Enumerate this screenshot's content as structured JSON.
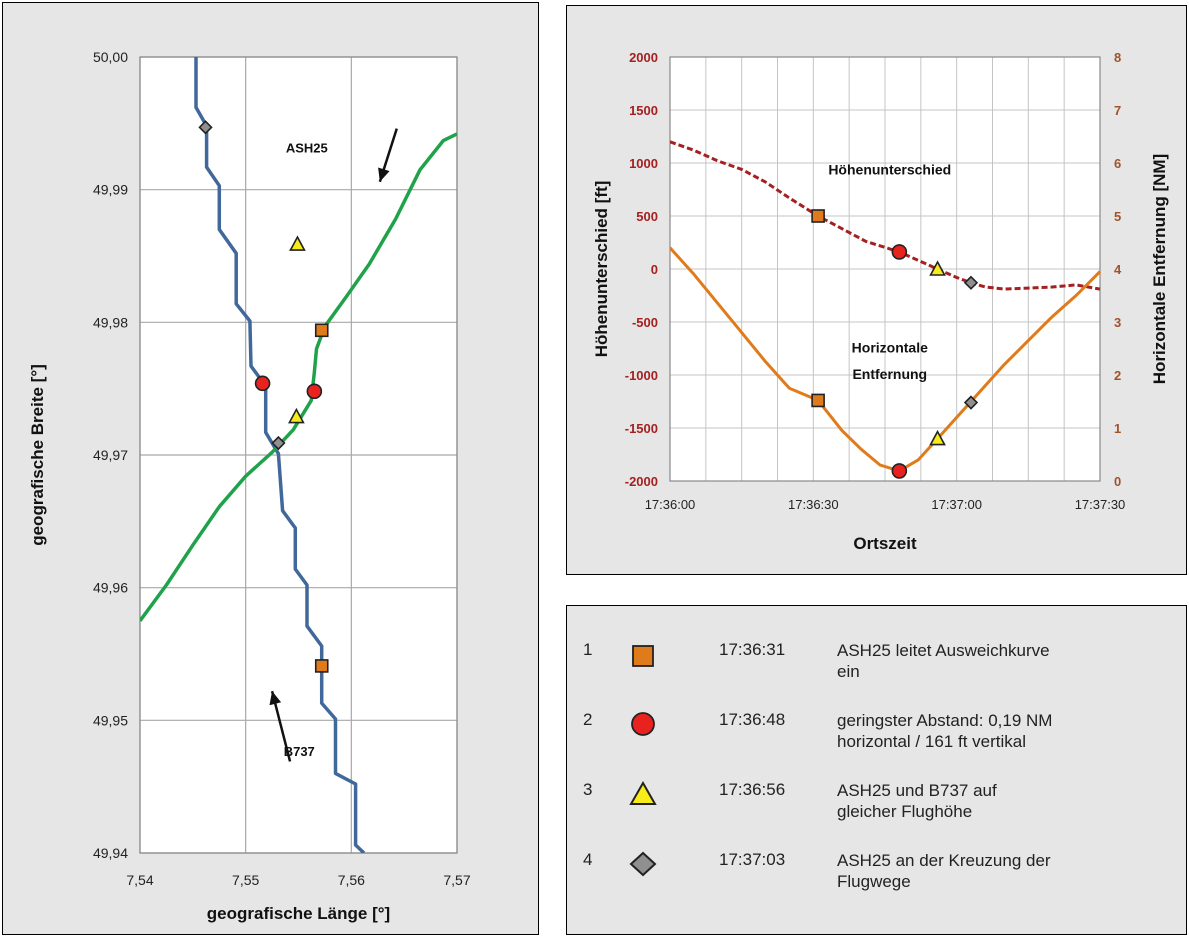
{
  "chart_data": [
    {
      "type": "line",
      "title": "",
      "xlabel": "geografische Länge [°]",
      "ylabel": "geografische Breite [°]",
      "xlim": [
        7.54,
        7.57
      ],
      "ylim": [
        49.94,
        50.0
      ],
      "x_ticks": [
        "7,54",
        "7,55",
        "7,56",
        "7,57"
      ],
      "y_ticks": [
        "49,94",
        "49,95",
        "49,96",
        "49,97",
        "49,98",
        "49,99",
        "50,00"
      ],
      "grid": true,
      "series": [
        {
          "name": "B737",
          "color": "#41689a",
          "points": [
            [
              7.5612,
              49.94
            ],
            [
              7.5604,
              49.9406
            ],
            [
              7.5604,
              49.9452
            ],
            [
              7.5585,
              49.946
            ],
            [
              7.5585,
              49.9501
            ],
            [
              7.5572,
              49.9513
            ],
            [
              7.5572,
              49.9556
            ],
            [
              7.5558,
              49.9571
            ],
            [
              7.5558,
              49.9602
            ],
            [
              7.5547,
              49.9614
            ],
            [
              7.5547,
              49.9645
            ],
            [
              7.5535,
              49.9658
            ],
            [
              7.5531,
              49.9701
            ],
            [
              7.5519,
              49.9717
            ],
            [
              7.5519,
              49.9752
            ],
            [
              7.5505,
              49.9767
            ],
            [
              7.5504,
              49.9801
            ],
            [
              7.5491,
              49.9814
            ],
            [
              7.5491,
              49.9852
            ],
            [
              7.5475,
              49.987
            ],
            [
              7.5475,
              49.9903
            ],
            [
              7.5463,
              49.9917
            ],
            [
              7.5463,
              49.9948
            ],
            [
              7.5453,
              49.9962
            ],
            [
              7.5453,
              50.0
            ]
          ]
        },
        {
          "name": "ASH25",
          "color": "#1fa24a",
          "points": [
            [
              7.54,
              49.9575
            ],
            [
              7.5425,
              49.9602
            ],
            [
              7.545,
              49.9632
            ],
            [
              7.5475,
              49.9661
            ],
            [
              7.55,
              49.9684
            ],
            [
              7.5525,
              49.9702
            ],
            [
              7.5545,
              49.9719
            ],
            [
              7.5562,
              49.9741
            ],
            [
              7.5565,
              49.9762
            ],
            [
              7.5567,
              49.978
            ],
            [
              7.5575,
              49.9797
            ],
            [
              7.5595,
              49.9819
            ],
            [
              7.5617,
              49.9844
            ],
            [
              7.5642,
              49.9878
            ],
            [
              7.5665,
              49.9915
            ],
            [
              7.5687,
              49.9937
            ],
            [
              7.57,
              49.9942
            ]
          ]
        }
      ],
      "markers": [
        {
          "shape": "square",
          "x": 7.5572,
          "y": 49.9794
        },
        {
          "shape": "square",
          "x": 7.5572,
          "y": 49.9541
        },
        {
          "shape": "circle",
          "x": 7.5516,
          "y": 49.9754
        },
        {
          "shape": "circle",
          "x": 7.5565,
          "y": 49.9748
        },
        {
          "shape": "triangle",
          "x": 7.5549,
          "y": 49.9859
        },
        {
          "shape": "triangle",
          "x": 7.5548,
          "y": 49.9729
        },
        {
          "shape": "diamond",
          "x": 7.5462,
          "y": 49.9947
        },
        {
          "shape": "diamond",
          "x": 7.5531,
          "y": 49.9709
        }
      ],
      "annotations": [
        {
          "text": "ASH25",
          "x": 7.5538,
          "y": 49.9928
        },
        {
          "text": "B737",
          "x": 7.5536,
          "y": 49.9473
        }
      ],
      "arrows": [
        {
          "from": [
            7.5643,
            49.9946
          ],
          "to": [
            7.5627,
            49.9906
          ]
        },
        {
          "from": [
            7.5542,
            49.9469
          ],
          "to": [
            7.5525,
            49.9522
          ]
        }
      ]
    },
    {
      "type": "line",
      "title": "",
      "xlabel": "Ortszeit",
      "ylabel": "Höhenunterschied  [ft]",
      "y2label": "Horizontale Entfernung  [NM]",
      "x_ticks": [
        "17:36:00",
        "17:36:30",
        "17:37:00",
        "17:37:30"
      ],
      "xlim_seconds": [
        0,
        90
      ],
      "ylim": [
        -2000,
        2000
      ],
      "y_ticks": [
        "2000",
        "1500",
        "1000",
        "500",
        "0",
        "-500",
        "-1000",
        "-1500",
        "-2000"
      ],
      "y2lim": [
        0,
        8
      ],
      "y2_ticks": [
        "8",
        "7",
        "6",
        "5",
        "4",
        "3",
        "2",
        "1",
        "0"
      ],
      "grid": true,
      "series": [
        {
          "name": "Höhenunterschied",
          "axis": "left",
          "color": "#a52020",
          "style": "dashed",
          "points_seconds": [
            [
              0,
              1200
            ],
            [
              5,
              1120
            ],
            [
              10,
              1020
            ],
            [
              15,
              940
            ],
            [
              20,
              820
            ],
            [
              25,
              670
            ],
            [
              31,
              500
            ],
            [
              36,
              380
            ],
            [
              41,
              260
            ],
            [
              46,
              190
            ],
            [
              48,
              161
            ],
            [
              52,
              80
            ],
            [
              56,
              0
            ],
            [
              60,
              -80
            ],
            [
              63,
              -130
            ],
            [
              66,
              -170
            ],
            [
              70,
              -190
            ],
            [
              75,
              -180
            ],
            [
              80,
              -170
            ],
            [
              85,
              -150
            ],
            [
              90,
              -190
            ]
          ]
        },
        {
          "name": "Horizontale Entfernung",
          "axis": "right",
          "color": "#e07b1b",
          "style": "solid",
          "points_seconds": [
            [
              0,
              4.4
            ],
            [
              5,
              3.9
            ],
            [
              10,
              3.35
            ],
            [
              15,
              2.8
            ],
            [
              20,
              2.25
            ],
            [
              25,
              1.75
            ],
            [
              31,
              1.52
            ],
            [
              36,
              0.95
            ],
            [
              40,
              0.6
            ],
            [
              44,
              0.3
            ],
            [
              48,
              0.19
            ],
            [
              52,
              0.4
            ],
            [
              56,
              0.8
            ],
            [
              60,
              1.2
            ],
            [
              63,
              1.5
            ],
            [
              66,
              1.8
            ],
            [
              70,
              2.2
            ],
            [
              75,
              2.65
            ],
            [
              80,
              3.1
            ],
            [
              85,
              3.5
            ],
            [
              90,
              3.95
            ]
          ]
        }
      ],
      "markers": [
        {
          "shape": "square",
          "series": "Höhenunterschied",
          "x_seconds": 31,
          "y": 500
        },
        {
          "shape": "circle",
          "series": "Höhenunterschied",
          "x_seconds": 48,
          "y": 161
        },
        {
          "shape": "triangle",
          "series": "Höhenunterschied",
          "x_seconds": 56,
          "y": 0
        },
        {
          "shape": "diamond",
          "series": "Höhenunterschied",
          "x_seconds": 63,
          "y": -130
        },
        {
          "shape": "square",
          "series": "Horizontale Entfernung",
          "x_seconds": 31,
          "y": 1.52
        },
        {
          "shape": "circle",
          "series": "Horizontale Entfernung",
          "x_seconds": 48,
          "y": 0.19
        },
        {
          "shape": "triangle",
          "series": "Horizontale Entfernung",
          "x_seconds": 56,
          "y": 0.8
        },
        {
          "shape": "diamond",
          "series": "Horizontale Entfernung",
          "x_seconds": 63,
          "y": 1.48
        }
      ],
      "annotations": [
        {
          "text": "Höhenunterschied",
          "x_seconds": 46,
          "y": 890
        },
        {
          "text": "Horizontale",
          "x_seconds": 46,
          "y": -790
        },
        {
          "text": "Entfernung",
          "x_seconds": 46,
          "y": -1040
        }
      ]
    }
  ],
  "legend": {
    "rows": [
      {
        "num": "1",
        "shape": "square",
        "time": "17:36:31",
        "line1": "ASH25 leitet Ausweichkurve",
        "line2": "ein"
      },
      {
        "num": "2",
        "shape": "circle",
        "time": "17:36:48",
        "line1": "geringster Abstand: 0,19 NM",
        "line2": "horizontal / 161 ft vertikal"
      },
      {
        "num": "3",
        "shape": "triangle",
        "time": "17:36:56",
        "line1": "ASH25 und B737 auf",
        "line2": "gleicher Flughöhe"
      },
      {
        "num": "4",
        "shape": "diamond",
        "time": "17:37:03",
        "line1": "ASH25 an der Kreuzung der",
        "line2": "Flugwege"
      }
    ]
  },
  "colors": {
    "square_fill": "#e07b1b",
    "circle_fill": "#e8231f",
    "triangle_fill": "#f7ec1a",
    "diamond_fill": "#8f8f8f",
    "left_axis_text": "#a52020",
    "right_axis_text": "#a0522d",
    "grid": "#a8a8a8",
    "plot_bg": "#ffffff",
    "panel_bg": "#e6e6e6"
  }
}
